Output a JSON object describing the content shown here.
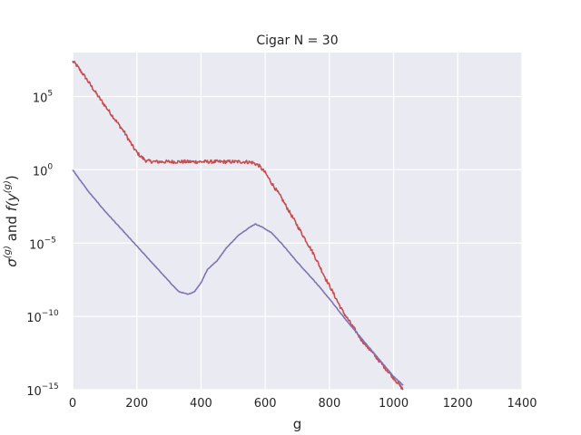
{
  "chart_data": {
    "type": "line",
    "title": "Cigar N = 30",
    "xlabel": "g",
    "ylabel": "σ(g) and f(y(g))",
    "ylabel_parts": {
      "sigma": "σ",
      "sup1": "(g)",
      "and": "and",
      "f": "f(y",
      "sup2": "(g)",
      "close": ")"
    },
    "y_scale": "log",
    "xlim": [
      0,
      1400
    ],
    "ylim_log10": [
      -15,
      8
    ],
    "grid": true,
    "background": "#eaeaf2",
    "x_ticks": [
      0,
      200,
      400,
      600,
      800,
      1000,
      1200,
      1400
    ],
    "x_tick_labels": [
      "0",
      "200",
      "400",
      "600",
      "800",
      "1000",
      "1200",
      "1400"
    ],
    "y_ticks_log10": [
      -15,
      -10,
      -5,
      0,
      5
    ],
    "y_tick_labels": [
      {
        "base": "10",
        "exp": "−15"
      },
      {
        "base": "10",
        "exp": "−10"
      },
      {
        "base": "10",
        "exp": "−5"
      },
      {
        "base": "10",
        "exp": "0"
      },
      {
        "base": "10",
        "exp": "5"
      }
    ],
    "series": [
      {
        "color": "#c44e52",
        "jitter": 0.12,
        "x": [
          0,
          10,
          40,
          80,
          120,
          160,
          190,
          200,
          210,
          230,
          260,
          300,
          400,
          500,
          540,
          560,
          580,
          600,
          620,
          650,
          700,
          750,
          790,
          800,
          840,
          900,
          950,
          1000,
          1030
        ],
        "log10y": [
          7.4,
          7.2,
          6.3,
          5.0,
          3.8,
          2.6,
          1.5,
          1.2,
          0.95,
          0.6,
          0.55,
          0.55,
          0.55,
          0.55,
          0.55,
          0.5,
          0.3,
          -0.2,
          -0.9,
          -1.9,
          -3.8,
          -5.7,
          -7.5,
          -7.9,
          -9.6,
          -11.6,
          -12.9,
          -14.2,
          -15.0
        ]
      },
      {
        "color": "#8172b2",
        "jitter": 0.02,
        "x": [
          0,
          50,
          100,
          150,
          200,
          250,
          300,
          330,
          360,
          380,
          400,
          420,
          450,
          480,
          520,
          560,
          570,
          590,
          620,
          650,
          700,
          750,
          800,
          850,
          900,
          950,
          1000,
          1030
        ],
        "log10y": [
          0.0,
          -1.5,
          -2.8,
          -4.0,
          -5.2,
          -6.4,
          -7.6,
          -8.3,
          -8.5,
          -8.3,
          -7.7,
          -6.8,
          -6.2,
          -5.3,
          -4.4,
          -3.8,
          -3.7,
          -3.9,
          -4.3,
          -5.0,
          -6.3,
          -7.5,
          -8.8,
          -10.2,
          -11.5,
          -12.8,
          -14.1,
          -14.7
        ]
      }
    ]
  }
}
